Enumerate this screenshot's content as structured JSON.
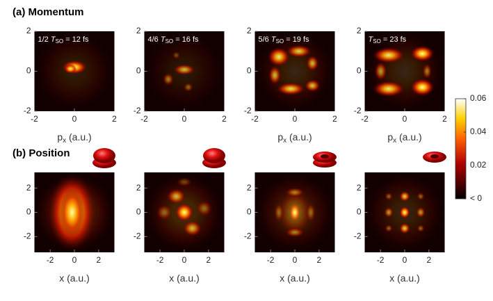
{
  "colorbar": {
    "clim": [
      0,
      0.06
    ],
    "ticks": [
      {
        "value": 0,
        "label": "< 0"
      },
      0.02,
      0.04,
      0.06
    ]
  },
  "rows": [
    {
      "label": "(a) Momentum",
      "xlim": [
        -2,
        2
      ],
      "ylim": [
        -2,
        2
      ],
      "xticks": [
        -2,
        0,
        2
      ],
      "yticks": [
        -2,
        0,
        2
      ],
      "xlabel": {
        "main": "p",
        "sub": "x",
        "unit": " (a.u.)"
      },
      "panels": [
        {
          "annotation": {
            "pre": "1/2 ",
            "T": "T",
            "sub": "SO",
            "post": " = 12 fs"
          },
          "show_xlabel": true
        },
        {
          "annotation": {
            "pre": "4/6 ",
            "T": "T",
            "sub": "SO",
            "post": " = 16 fs"
          },
          "show_xlabel": false
        },
        {
          "annotation": {
            "pre": "5/6 ",
            "T": "T",
            "sub": "SO",
            "post": " = 19 fs"
          },
          "show_xlabel": true
        },
        {
          "annotation": {
            "pre": "",
            "T": "T",
            "sub": "SO",
            "post": " = 23 fs"
          },
          "show_xlabel": true
        }
      ]
    },
    {
      "label": "(b) Position",
      "xlim": [
        -3.3,
        3.3
      ],
      "ylim": [
        -3.3,
        3.3
      ],
      "xticks": [
        -2,
        0,
        2
      ],
      "yticks": [
        -2,
        0,
        2
      ],
      "xlabel": {
        "main": "x",
        "sub": "",
        "unit": " (a.u.)"
      },
      "panels": [
        {
          "show_xlabel": true
        },
        {
          "show_xlabel": true
        },
        {
          "show_xlabel": true
        },
        {
          "show_xlabel": true
        }
      ]
    }
  ]
}
